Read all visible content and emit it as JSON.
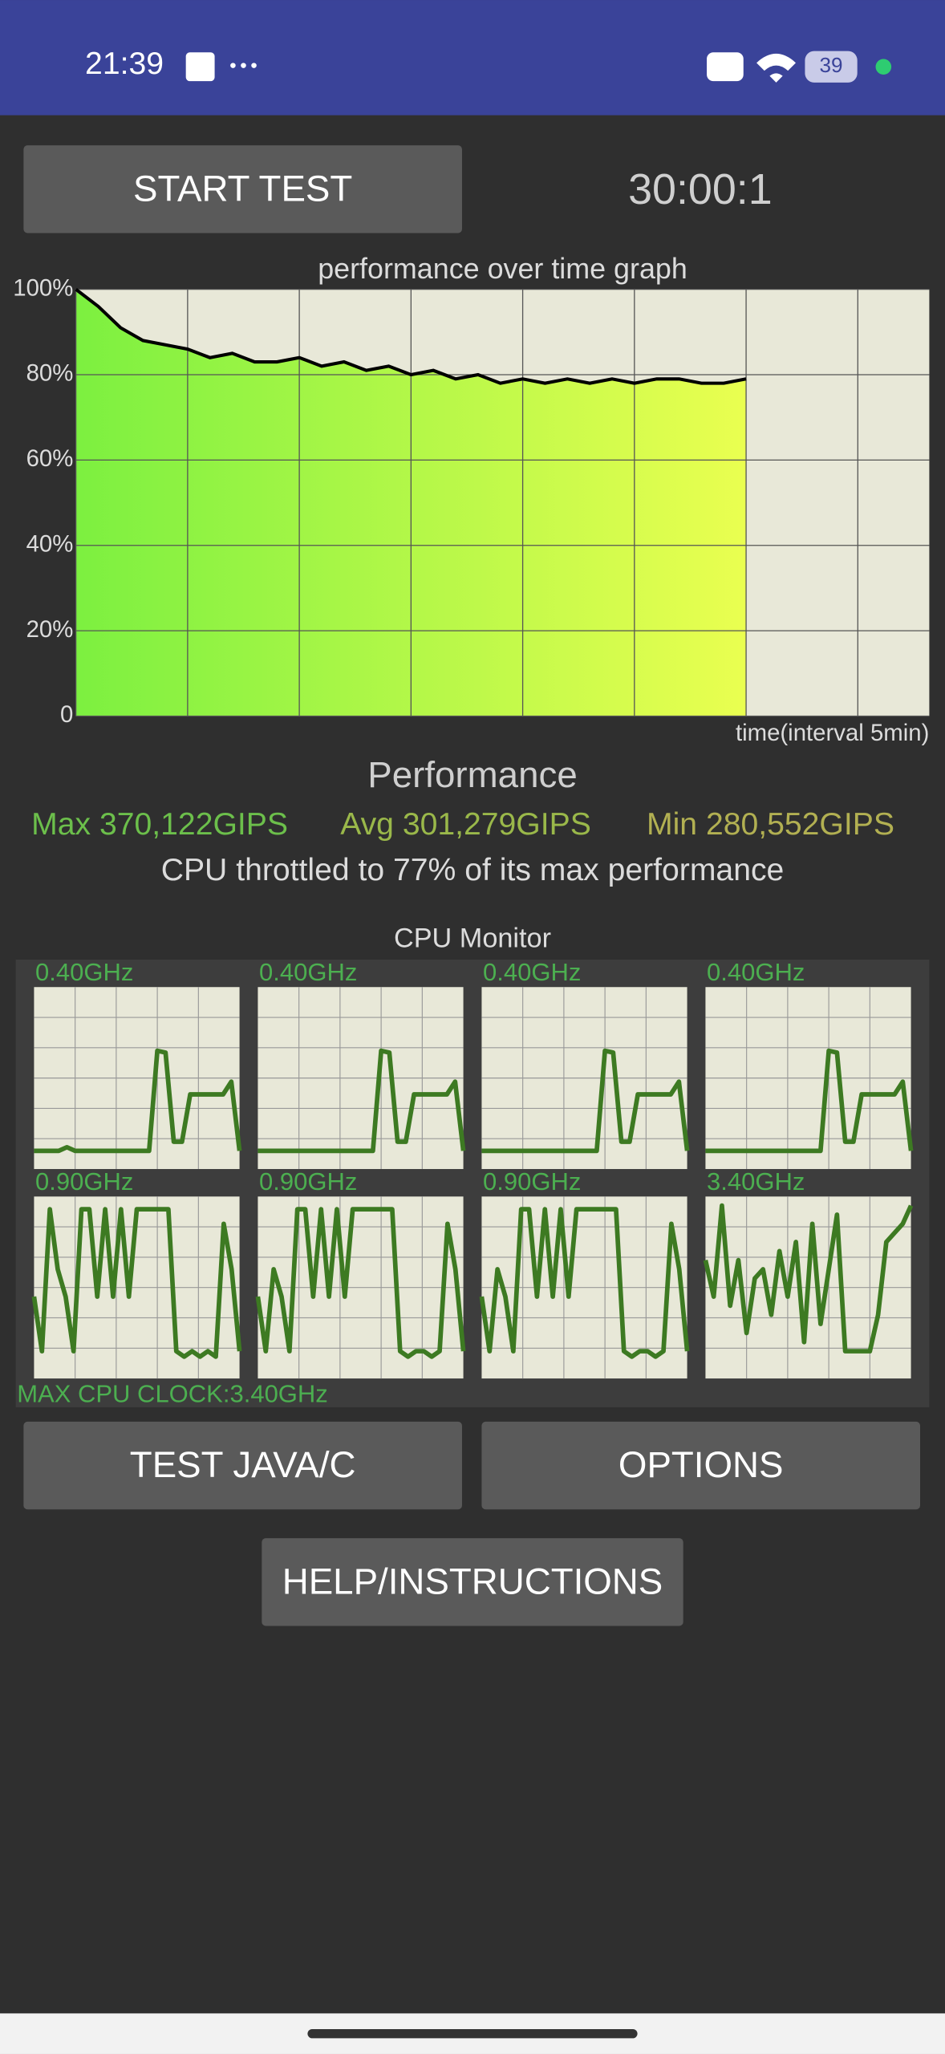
{
  "status_bar": {
    "time": "21:39",
    "battery": "39"
  },
  "buttons": {
    "start": "START TEST",
    "test_java": "TEST JAVA/C",
    "options": "OPTIONS",
    "help": "HELP/INSTRUCTIONS"
  },
  "timer": "30:00:1",
  "chart_data": {
    "type": "line",
    "title": "performance over time graph",
    "x_label": "time(interval 5min)",
    "x": [
      0,
      1,
      2,
      3,
      4,
      5,
      6,
      7,
      8,
      9,
      10,
      11,
      12,
      13,
      14,
      15,
      16,
      17,
      18,
      19,
      20,
      21,
      22,
      23,
      24,
      25,
      26,
      27,
      28,
      29,
      30
    ],
    "series": [
      {
        "color": "#000000",
        "values": [
          100,
          96,
          91,
          88,
          87,
          86,
          84,
          85,
          83,
          83,
          84,
          82,
          83,
          81,
          82,
          80,
          81,
          79,
          80,
          78,
          79,
          78,
          79,
          78,
          79,
          78,
          79,
          79,
          78,
          78,
          79
        ]
      }
    ],
    "xlim": [
      0,
      38.2
    ],
    "ylim": [
      0,
      100
    ],
    "xgrid": [
      0,
      5,
      10,
      15,
      20,
      25,
      30,
      35
    ],
    "yticks": [
      {
        "value": 100,
        "label": "100%"
      },
      {
        "value": 80,
        "label": "80%"
      },
      {
        "value": 60,
        "label": "60%"
      },
      {
        "value": 40,
        "label": "40%"
      },
      {
        "value": 20,
        "label": "20%"
      },
      0
    ],
    "grid": true,
    "fill_colors": [
      "#7cf040",
      "#eaff50"
    ]
  },
  "performance": {
    "title": "Performance",
    "max": "Max 370,122GIPS",
    "avg": "Avg 301,279GIPS",
    "min": "Min 280,552GIPS",
    "throttle": "CPU throttled to 77% of its max performance"
  },
  "cpu_monitor": {
    "title": "CPU Monitor",
    "ylim": [
      0,
      100
    ],
    "color": "#3d7a22",
    "cores": [
      {
        "label": "0.40GHz",
        "values": [
          10,
          10,
          10,
          10,
          12,
          10,
          10,
          10,
          10,
          10,
          10,
          10,
          10,
          10,
          10,
          65,
          64,
          15,
          15,
          41,
          41,
          41,
          41,
          41,
          48,
          10
        ]
      },
      {
        "label": "0.40GHz",
        "values": [
          10,
          10,
          10,
          10,
          10,
          10,
          10,
          10,
          10,
          10,
          10,
          10,
          10,
          10,
          10,
          65,
          64,
          15,
          15,
          41,
          41,
          41,
          41,
          41,
          48,
          10
        ]
      },
      {
        "label": "0.40GHz",
        "values": [
          10,
          10,
          10,
          10,
          10,
          10,
          10,
          10,
          10,
          10,
          10,
          10,
          10,
          10,
          10,
          65,
          64,
          15,
          15,
          41,
          41,
          41,
          41,
          41,
          48,
          10
        ]
      },
      {
        "label": "0.40GHz",
        "values": [
          10,
          10,
          10,
          10,
          10,
          10,
          10,
          10,
          10,
          10,
          10,
          10,
          10,
          10,
          10,
          65,
          64,
          15,
          15,
          41,
          41,
          41,
          41,
          41,
          48,
          10
        ]
      },
      {
        "label": "0.90GHz",
        "values": [
          45,
          15,
          93,
          60,
          45,
          15,
          93,
          93,
          45,
          93,
          45,
          93,
          45,
          93,
          93,
          93,
          93,
          93,
          15,
          12,
          15,
          12,
          15,
          12,
          85,
          60,
          15
        ]
      },
      {
        "label": "0.90GHz",
        "values": [
          45,
          15,
          60,
          45,
          15,
          93,
          93,
          45,
          93,
          45,
          93,
          45,
          93,
          93,
          93,
          93,
          93,
          93,
          15,
          12,
          15,
          15,
          12,
          15,
          85,
          60,
          15
        ]
      },
      {
        "label": "0.90GHz",
        "values": [
          45,
          15,
          60,
          45,
          15,
          93,
          93,
          45,
          93,
          45,
          93,
          45,
          93,
          93,
          93,
          93,
          93,
          93,
          15,
          12,
          15,
          15,
          12,
          15,
          85,
          60,
          15
        ]
      },
      {
        "label": "3.40GHz",
        "values": [
          65,
          45,
          95,
          40,
          65,
          25,
          55,
          60,
          35,
          70,
          45,
          75,
          20,
          85,
          30,
          60,
          90,
          15,
          15,
          15,
          15,
          35,
          75,
          80,
          85,
          95
        ]
      }
    ],
    "max_clock": "MAX CPU CLOCK:3.40GHz"
  }
}
